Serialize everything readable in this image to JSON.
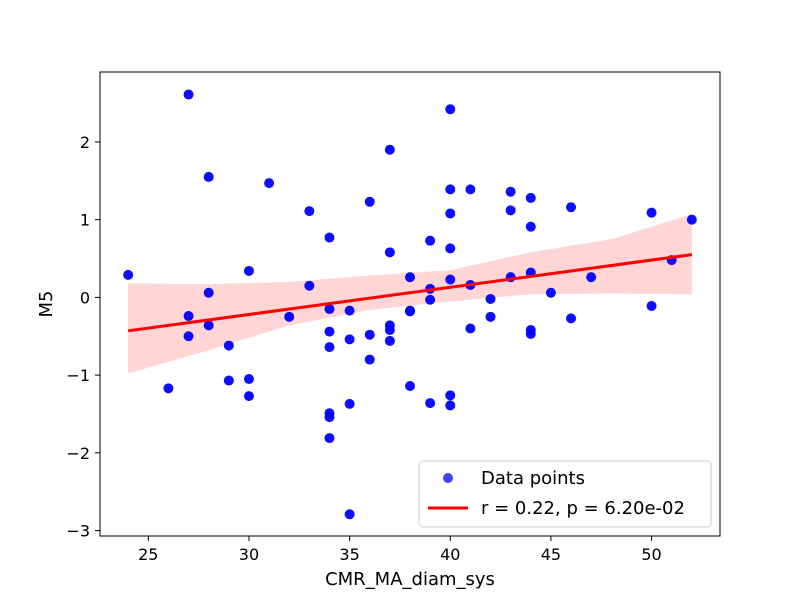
{
  "chart_data": {
    "type": "scatter",
    "title": "",
    "xlabel": "CMR_MA_diam_sys",
    "ylabel": "M5",
    "xlim": [
      22.6,
      53.4
    ],
    "ylim": [
      -3.07,
      2.9
    ],
    "xticks": [
      25,
      30,
      35,
      40,
      45,
      50
    ],
    "yticks": [
      -3,
      -2,
      -1,
      0,
      1,
      2
    ],
    "grid": false,
    "legend_position": "lower-right",
    "colors": {
      "points": "#0000ff",
      "fit_line": "#ff0000",
      "confidence_band": "#ffb3b3"
    },
    "series": [
      {
        "name": "Data points",
        "kind": "scatter",
        "points": [
          [
            24,
            0.29
          ],
          [
            26,
            -1.17
          ],
          [
            27,
            2.61
          ],
          [
            27,
            -0.24
          ],
          [
            27,
            -0.5
          ],
          [
            28,
            1.55
          ],
          [
            28,
            0.06
          ],
          [
            28,
            -0.36
          ],
          [
            29,
            -0.62
          ],
          [
            29,
            -1.07
          ],
          [
            30,
            0.34
          ],
          [
            30,
            -1.05
          ],
          [
            30,
            -1.27
          ],
          [
            31,
            1.47
          ],
          [
            32,
            -0.25
          ],
          [
            33,
            1.11
          ],
          [
            33,
            0.15
          ],
          [
            34,
            0.77
          ],
          [
            34,
            -0.15
          ],
          [
            34,
            -0.44
          ],
          [
            34,
            -0.64
          ],
          [
            34,
            -1.49
          ],
          [
            34,
            -1.54
          ],
          [
            34,
            -1.81
          ],
          [
            35,
            -0.17
          ],
          [
            35,
            -0.54
          ],
          [
            35,
            -1.37
          ],
          [
            35,
            -2.79
          ],
          [
            36,
            1.23
          ],
          [
            36,
            -0.48
          ],
          [
            36,
            -0.8
          ],
          [
            37,
            1.9
          ],
          [
            37,
            0.58
          ],
          [
            37,
            -0.36
          ],
          [
            37,
            -0.42
          ],
          [
            37,
            -0.56
          ],
          [
            38,
            0.26
          ],
          [
            38,
            -0.17
          ],
          [
            38,
            -1.14
          ],
          [
            38,
            -0.18
          ],
          [
            39,
            0.73
          ],
          [
            39,
            0.11
          ],
          [
            39,
            -0.03
          ],
          [
            39,
            -1.36
          ],
          [
            40,
            2.42
          ],
          [
            40,
            1.39
          ],
          [
            40,
            1.08
          ],
          [
            40,
            0.63
          ],
          [
            40,
            0.23
          ],
          [
            40,
            -1.26
          ],
          [
            40,
            -1.39
          ],
          [
            41,
            1.39
          ],
          [
            41,
            0.16
          ],
          [
            41,
            -0.4
          ],
          [
            42,
            -0.02
          ],
          [
            42,
            -0.25
          ],
          [
            43,
            1.36
          ],
          [
            43,
            1.12
          ],
          [
            43,
            0.26
          ],
          [
            44,
            1.28
          ],
          [
            44,
            0.91
          ],
          [
            44,
            0.32
          ],
          [
            44,
            -0.42
          ],
          [
            44,
            -0.47
          ],
          [
            45,
            0.06
          ],
          [
            46,
            1.16
          ],
          [
            46,
            -0.27
          ],
          [
            47,
            0.26
          ],
          [
            50,
            1.09
          ],
          [
            50,
            -0.11
          ],
          [
            51,
            0.48
          ],
          [
            52,
            1.0
          ]
        ]
      },
      {
        "name": "r = 0.22, p = 6.20e-02",
        "kind": "line",
        "points": [
          [
            24,
            -0.43
          ],
          [
            52,
            0.55
          ]
        ]
      }
    ],
    "confidence_band": {
      "x": [
        24,
        28,
        32,
        36,
        40,
        44,
        48,
        52
      ],
      "upper": [
        0.18,
        0.17,
        0.2,
        0.28,
        0.35,
        0.58,
        0.75,
        1.07
      ],
      "lower": [
        -0.98,
        -0.68,
        -0.36,
        -0.16,
        -0.05,
        0.04,
        0.05,
        0.04
      ]
    }
  }
}
